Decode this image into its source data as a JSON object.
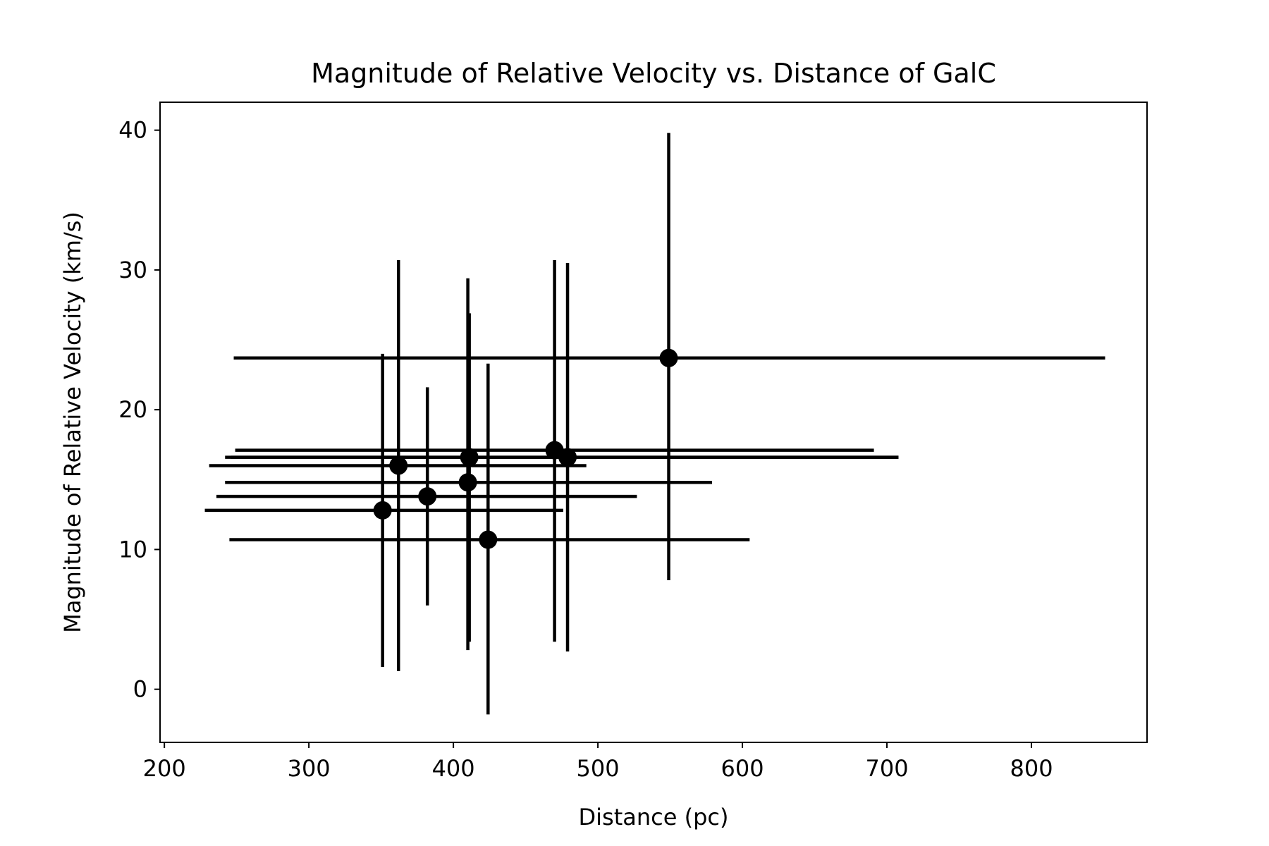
{
  "chart_data": {
    "type": "scatter",
    "title": "Magnitude of Relative Velocity vs. Distance of GalC",
    "xlabel": "Distance (pc)",
    "ylabel": "Magnitude of Relative Velocity (km/s)",
    "xlim": [
      197,
      880
    ],
    "ylim": [
      -3.8,
      42
    ],
    "xticks": [
      200,
      300,
      400,
      500,
      600,
      700,
      800
    ],
    "yticks": [
      0,
      10,
      20,
      30,
      40
    ],
    "grid": false,
    "marker_color": "#000000",
    "points": [
      {
        "x": 351,
        "y": 12.8,
        "xerr_low": 228,
        "xerr_high": 476,
        "yerr_low": 1.6,
        "yerr_high": 24.0
      },
      {
        "x": 362,
        "y": 16.0,
        "xerr_low": 231,
        "xerr_high": 492,
        "yerr_low": 1.3,
        "yerr_high": 30.7
      },
      {
        "x": 382,
        "y": 13.8,
        "xerr_low": 236,
        "xerr_high": 527,
        "yerr_low": 6.0,
        "yerr_high": 21.6
      },
      {
        "x": 410,
        "y": 14.8,
        "xerr_low": 242,
        "xerr_high": 579,
        "yerr_low": 2.8,
        "yerr_high": 29.4
      },
      {
        "x": 411,
        "y": 16.6,
        "xerr_low": 242,
        "xerr_high": 708,
        "yerr_low": 3.4,
        "yerr_high": 26.9
      },
      {
        "x": 424,
        "y": 10.7,
        "xerr_low": 245,
        "xerr_high": 605,
        "yerr_low": -1.8,
        "yerr_high": 23.3
      },
      {
        "x": 470,
        "y": 17.1,
        "xerr_low": 249,
        "xerr_high": 691,
        "yerr_low": 3.4,
        "yerr_high": 30.7
      },
      {
        "x": 479,
        "y": 16.6,
        "xerr_low": 246,
        "xerr_high": 708,
        "yerr_low": 2.7,
        "yerr_high": 30.5
      },
      {
        "x": 549,
        "y": 23.7,
        "xerr_low": 248,
        "xerr_high": 851,
        "yerr_low": 7.8,
        "yerr_high": 39.8
      }
    ]
  }
}
